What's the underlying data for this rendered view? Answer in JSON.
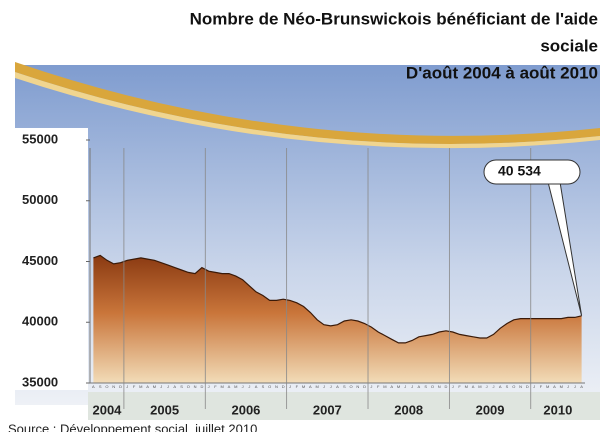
{
  "chart_data": {
    "type": "area",
    "title": [
      "Nombre de Néo-Brunswickois bénéficiant de l'aide",
      "sociale",
      "D'août 2004 à août 2010"
    ],
    "categories": [
      "A",
      "S",
      "O",
      "N",
      "D",
      "J",
      "F",
      "M",
      "A",
      "M",
      "J",
      "J",
      "A",
      "S",
      "O",
      "N",
      "D",
      "J",
      "F",
      "M",
      "A",
      "M",
      "J",
      "J",
      "A",
      "S",
      "O",
      "N",
      "D",
      "J",
      "F",
      "M",
      "A",
      "M",
      "J",
      "J",
      "A",
      "S",
      "O",
      "N",
      "D",
      "J",
      "F",
      "M",
      "A",
      "M",
      "J",
      "J",
      "A",
      "S",
      "O",
      "N",
      "D",
      "J",
      "F",
      "M",
      "A",
      "M",
      "J",
      "J",
      "A",
      "S",
      "O",
      "N",
      "D",
      "J",
      "F",
      "M",
      "A",
      "M",
      "J",
      "J",
      "A"
    ],
    "years": [
      "2004",
      "2005",
      "2006",
      "2007",
      "2008",
      "2009",
      "2010"
    ],
    "values": [
      45300,
      45500,
      45100,
      44800,
      44900,
      45100,
      45200,
      45300,
      45200,
      45100,
      44900,
      44700,
      44500,
      44300,
      44100,
      44000,
      44500,
      44200,
      44100,
      44000,
      44000,
      43800,
      43500,
      43000,
      42500,
      42200,
      41800,
      41800,
      41900,
      41800,
      41600,
      41300,
      40800,
      40200,
      39800,
      39700,
      39800,
      40100,
      40200,
      40100,
      39900,
      39600,
      39200,
      38900,
      38600,
      38300,
      38300,
      38500,
      38800,
      38900,
      39000,
      39200,
      39300,
      39200,
      39000,
      38900,
      38800,
      38700,
      38700,
      39000,
      39500,
      39900,
      40200,
      40300,
      40300,
      40300,
      40300,
      40300,
      40300,
      40300,
      40400,
      40400,
      40534
    ],
    "annotation": "40 534",
    "ylim": [
      35000,
      55000
    ],
    "yticks": [
      35000,
      40000,
      45000,
      50000,
      55000
    ],
    "source": "Source : Développement social, juillet 2010"
  }
}
